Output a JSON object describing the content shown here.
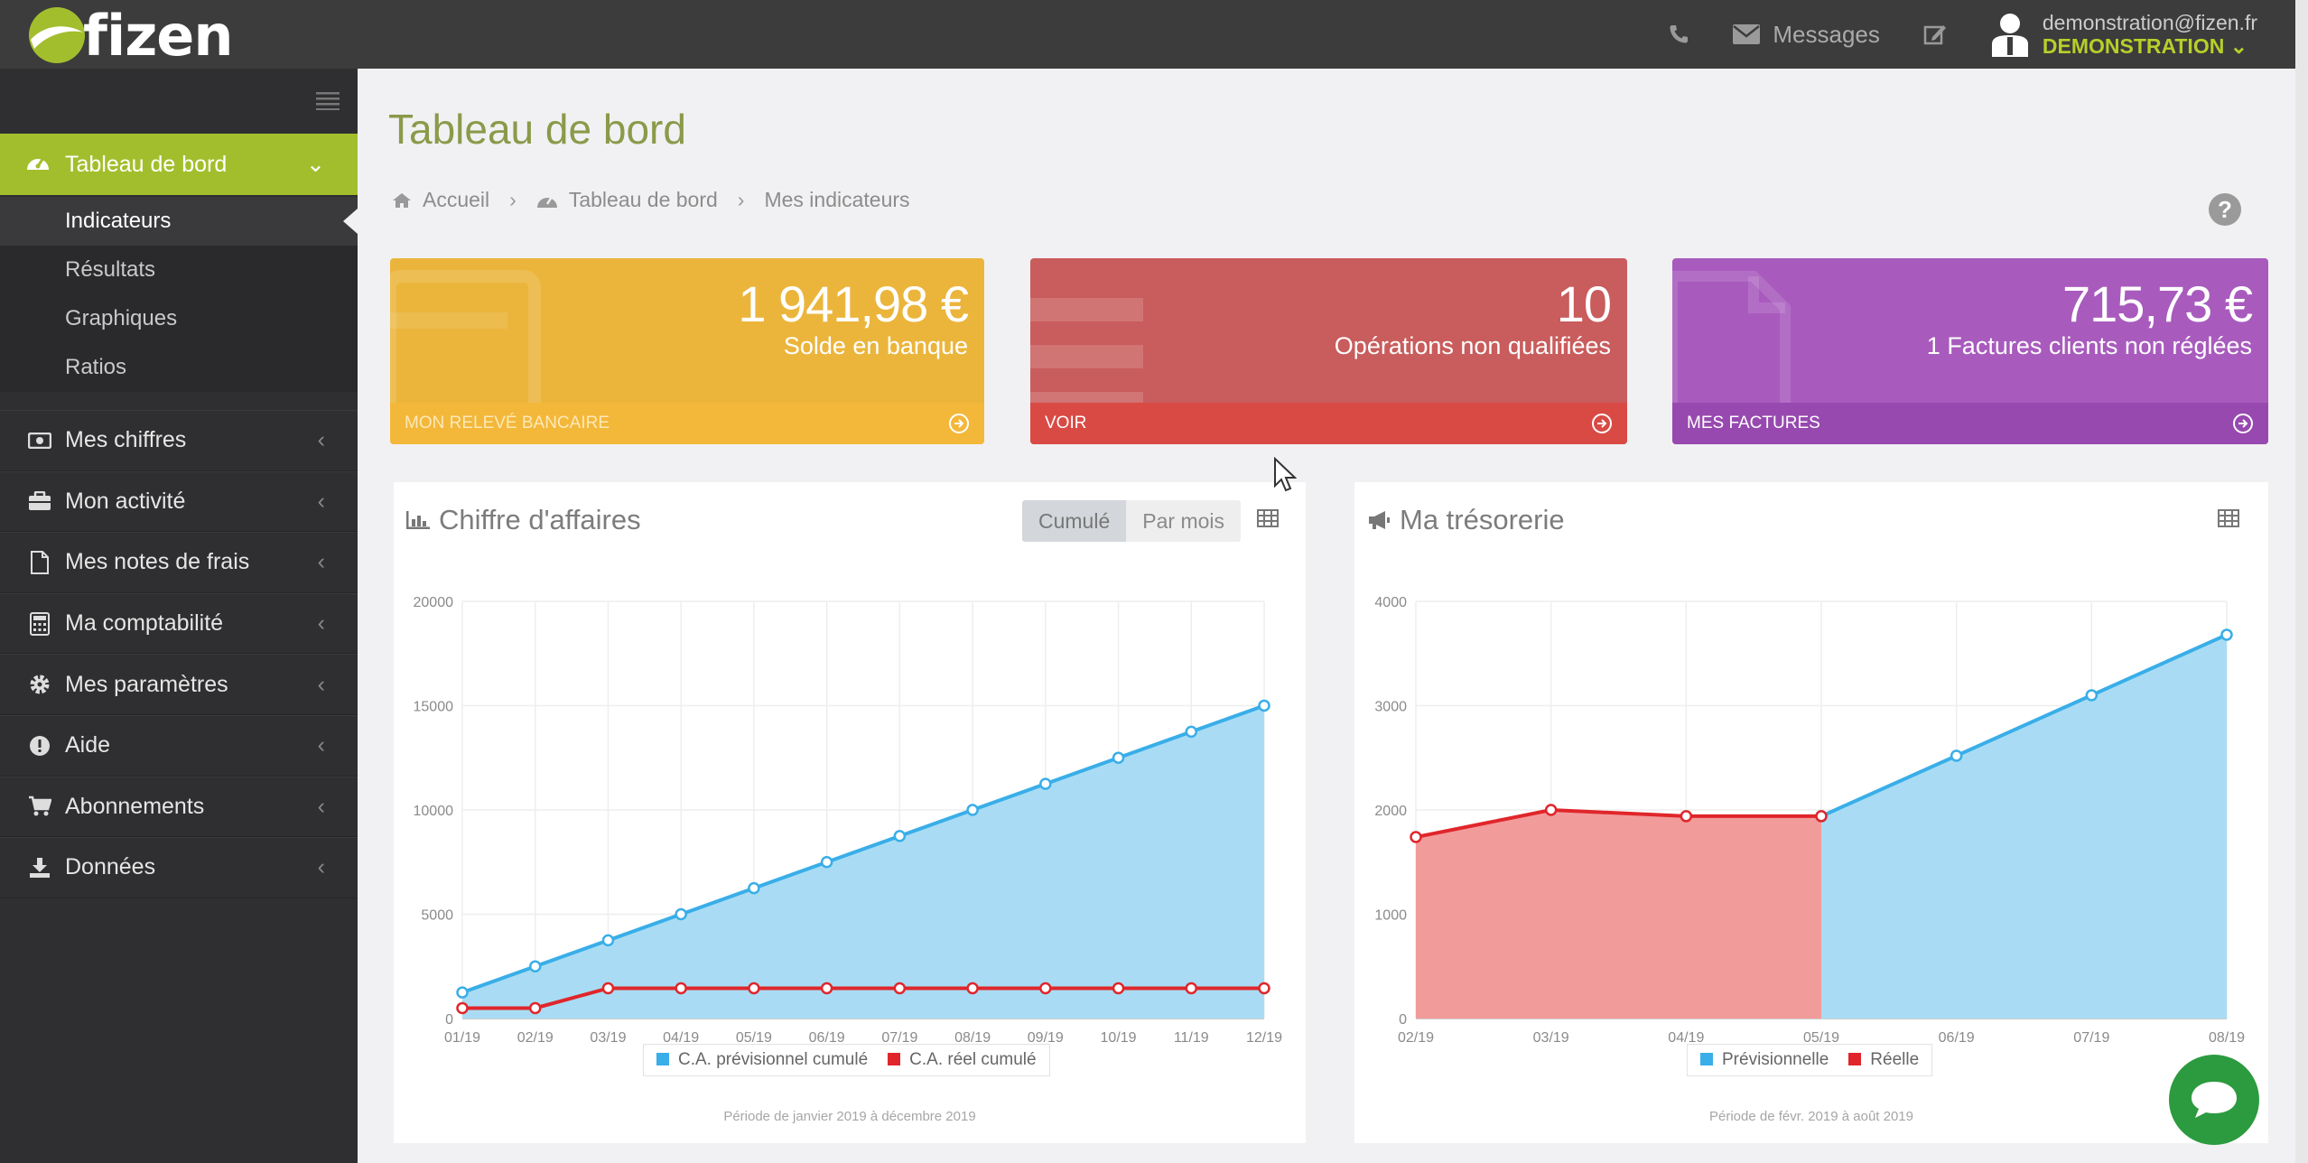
{
  "app": {
    "brand": "fizen"
  },
  "topbar": {
    "messages_label": "Messages",
    "user_email": "demonstration@fizen.fr",
    "user_name": "DEMONSTRATION"
  },
  "sidebar": {
    "active": {
      "label": "Tableau de bord"
    },
    "submenu": [
      "Indicateurs",
      "Résultats",
      "Graphiques",
      "Ratios"
    ],
    "items": [
      {
        "label": "Mes chiffres",
        "icon": "money-icon"
      },
      {
        "label": "Mon activité",
        "icon": "briefcase-icon"
      },
      {
        "label": "Mes notes de frais",
        "icon": "file-icon"
      },
      {
        "label": "Ma comptabilité",
        "icon": "calculator-icon"
      },
      {
        "label": "Mes paramètres",
        "icon": "gear-icon"
      },
      {
        "label": "Aide",
        "icon": "info-icon"
      },
      {
        "label": "Abonnements",
        "icon": "cart-icon"
      },
      {
        "label": "Données",
        "icon": "download-icon"
      }
    ]
  },
  "page": {
    "title": "Tableau de bord",
    "breadcrumb": [
      "Accueil",
      "Tableau de bord",
      "Mes indicateurs"
    ]
  },
  "cards": [
    {
      "value": "1 941,98 €",
      "label": "Solde en banque",
      "footer": "MON RELEVÉ BANCAIRE",
      "color": "#ebb53c"
    },
    {
      "value": "10",
      "label": "Opérations non qualifiées",
      "footer": "VOIR",
      "color": "#c95c5c"
    },
    {
      "value": "715,73 €",
      "label": "1 Factures clients non réglées",
      "footer": "MES FACTURES",
      "color": "#a85bbd"
    }
  ],
  "revenue_panel": {
    "title": "Chiffre d'affaires",
    "toggle": [
      "Cumulé",
      "Par mois"
    ],
    "period": "Période de janvier 2019 à décembre 2019"
  },
  "treasury_panel": {
    "title": "Ma trésorerie",
    "period": "Période de févr. 2019 à août 2019"
  },
  "chart_data": [
    {
      "type": "area",
      "title": "Chiffre d'affaires",
      "categories": [
        "01/19",
        "02/19",
        "03/19",
        "04/19",
        "05/19",
        "06/19",
        "07/19",
        "08/19",
        "09/19",
        "10/19",
        "11/19",
        "12/19"
      ],
      "ylim": [
        0,
        20000
      ],
      "yticks": [
        0,
        5000,
        10000,
        15000,
        20000
      ],
      "series": [
        {
          "name": "C.A. prévisionnel cumulé",
          "color": "#39aee8",
          "fill": "#a9dcf4",
          "values": [
            1250,
            2500,
            3750,
            5000,
            6250,
            7500,
            8750,
            10000,
            11250,
            12500,
            13750,
            15000
          ]
        },
        {
          "name": "C.A. réel cumulé",
          "color": "#e0262b",
          "values": [
            500,
            500,
            1450,
            1450,
            1450,
            1450,
            1450,
            1450,
            1450,
            1450,
            1450,
            1450
          ]
        }
      ],
      "grid": true,
      "legend": "bottom"
    },
    {
      "type": "area",
      "title": "Ma trésorerie",
      "categories": [
        "02/19",
        "03/19",
        "04/19",
        "05/19",
        "06/19",
        "07/19",
        "08/19"
      ],
      "ylim": [
        0,
        4000
      ],
      "yticks": [
        0,
        1000,
        2000,
        3000,
        4000
      ],
      "series": [
        {
          "name": "Prévisionnelle",
          "color": "#39aee8",
          "fill": "#a9dcf4",
          "values": [
            null,
            null,
            null,
            1940,
            2520,
            3100,
            3680
          ]
        },
        {
          "name": "Réelle",
          "color": "#e0262b",
          "fill": "#f29b9b",
          "values": [
            1740,
            2000,
            1940,
            1940,
            null,
            null,
            null
          ]
        }
      ],
      "grid": true,
      "legend": "bottom"
    }
  ]
}
